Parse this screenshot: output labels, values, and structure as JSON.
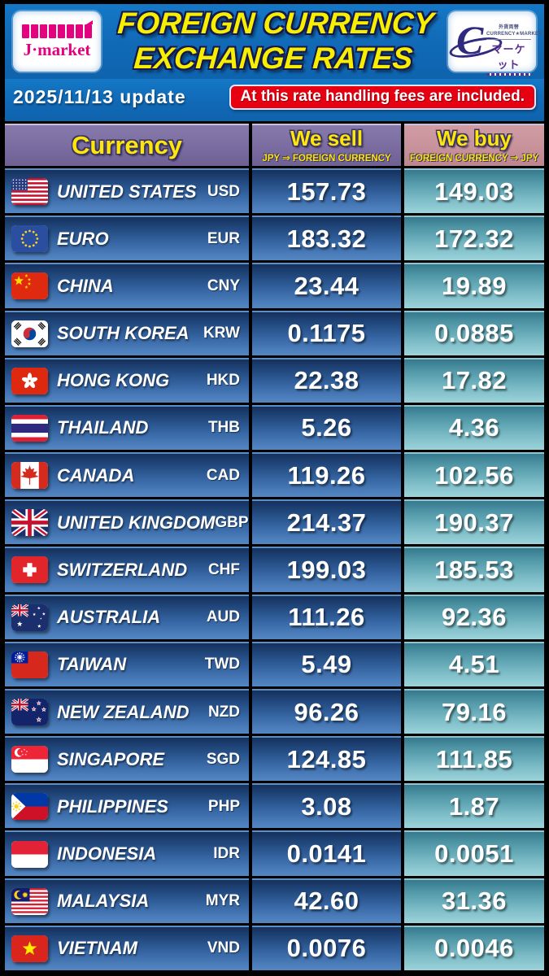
{
  "header": {
    "title_line1": "FOREIGN CURRENCY",
    "title_line2": "EXCHANGE RATES",
    "jmarket_logo": "J·market",
    "cm_logo_small_line1": "外貨両替",
    "cm_logo_small_line2": "CURRENCY★MARKET",
    "cm_logo_text": "マーケット"
  },
  "subheader": {
    "date": "2025/11/13 update",
    "notice": "At this rate handling fees are included."
  },
  "columns": {
    "currency": "Currency",
    "sell": "We sell",
    "sell_sub": "JPY ⇒ FOREIGN CURRENCY",
    "buy": "We buy",
    "buy_sub": "FOREIGN CURRENCY ⇒ JPY"
  },
  "colors": {
    "header_blue": "#1169b6",
    "accent_yellow": "#f6ef00",
    "notice_red": "#e60012",
    "sell_header_purple": "#7a6ca0",
    "buy_header_pink": "#c8929b",
    "row_blue_top": "#16305c",
    "row_blue_bottom": "#5286c2",
    "buy_teal_top": "#36798c",
    "buy_teal_bottom": "#9dd3da"
  },
  "rates": [
    {
      "country": "UNITED STATES",
      "code": "USD",
      "flag": "us",
      "sell": "157.73",
      "buy": "149.03"
    },
    {
      "country": "EURO",
      "code": "EUR",
      "flag": "eu",
      "sell": "183.32",
      "buy": "172.32"
    },
    {
      "country": "CHINA",
      "code": "CNY",
      "flag": "cn",
      "sell": "23.44",
      "buy": "19.89"
    },
    {
      "country": "SOUTH KOREA",
      "code": "KRW",
      "flag": "kr",
      "sell": "0.1175",
      "buy": "0.0885"
    },
    {
      "country": "HONG KONG",
      "code": "HKD",
      "flag": "hk",
      "sell": "22.38",
      "buy": "17.82"
    },
    {
      "country": "THAILAND",
      "code": "THB",
      "flag": "th",
      "sell": "5.26",
      "buy": "4.36"
    },
    {
      "country": "CANADA",
      "code": "CAD",
      "flag": "ca",
      "sell": "119.26",
      "buy": "102.56"
    },
    {
      "country": "UNITED KINGDOM",
      "code": "GBP",
      "flag": "gb",
      "sell": "214.37",
      "buy": "190.37"
    },
    {
      "country": "SWITZERLAND",
      "code": "CHF",
      "flag": "ch",
      "sell": "199.03",
      "buy": "185.53"
    },
    {
      "country": "AUSTRALIA",
      "code": "AUD",
      "flag": "au",
      "sell": "111.26",
      "buy": "92.36"
    },
    {
      "country": "TAIWAN",
      "code": "TWD",
      "flag": "tw",
      "sell": "5.49",
      "buy": "4.51"
    },
    {
      "country": "NEW ZEALAND",
      "code": "NZD",
      "flag": "nz",
      "sell": "96.26",
      "buy": "79.16"
    },
    {
      "country": "SINGAPORE",
      "code": "SGD",
      "flag": "sg",
      "sell": "124.85",
      "buy": "111.85"
    },
    {
      "country": "PHILIPPINES",
      "code": "PHP",
      "flag": "ph",
      "sell": "3.08",
      "buy": "1.87"
    },
    {
      "country": "INDONESIA",
      "code": "IDR",
      "flag": "id",
      "sell": "0.0141",
      "buy": "0.0051"
    },
    {
      "country": "MALAYSIA",
      "code": "MYR",
      "flag": "my",
      "sell": "42.60",
      "buy": "31.36"
    },
    {
      "country": "VIETNAM",
      "code": "VND",
      "flag": "vn",
      "sell": "0.0076",
      "buy": "0.0046"
    }
  ]
}
